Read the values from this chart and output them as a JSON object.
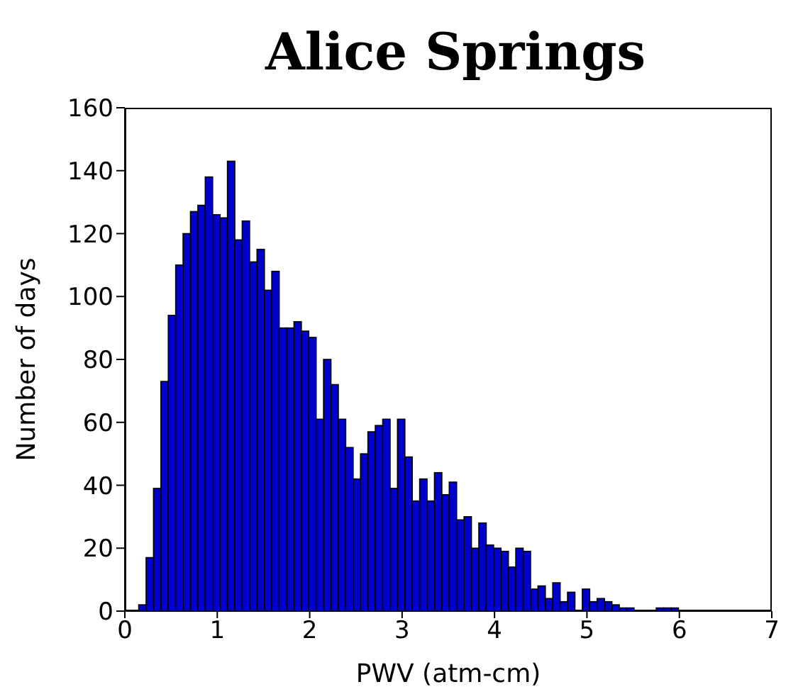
{
  "chart_data": {
    "type": "histogram",
    "title": "Alice Springs",
    "xlabel": "PWV (atm-cm)",
    "ylabel": "Number of days",
    "color": "#0000cc",
    "bins": [
      0.15,
      0.23,
      0.31,
      0.39,
      0.47,
      0.55,
      0.63,
      0.71,
      0.79,
      0.87,
      0.95,
      1.03,
      1.11,
      1.19,
      1.27,
      1.35,
      1.43,
      1.51,
      1.59,
      1.67,
      1.75,
      1.83,
      1.91,
      1.99,
      2.07,
      2.15,
      2.23,
      2.31,
      2.39,
      2.47,
      2.55,
      2.63,
      2.71,
      2.79,
      2.87,
      2.95,
      3.03,
      3.11,
      3.19,
      3.27,
      3.35,
      3.43,
      3.51,
      3.59,
      3.67,
      3.75,
      3.83,
      3.91,
      3.99,
      4.07,
      4.15,
      4.23,
      4.31,
      4.39,
      4.47,
      4.55,
      4.63,
      4.71,
      4.79,
      4.87,
      4.95,
      5.03,
      5.11,
      5.19,
      5.27,
      5.35,
      5.43,
      5.51,
      5.59,
      5.67,
      5.75,
      5.83,
      5.91,
      5.99
    ],
    "values": [
      2,
      17,
      39,
      73,
      94,
      110,
      120,
      127,
      129,
      138,
      126,
      125,
      143,
      118,
      124,
      111,
      115,
      102,
      108,
      90,
      90,
      92,
      89,
      87,
      61,
      80,
      72,
      61,
      52,
      42,
      50,
      57,
      59,
      61,
      39,
      61,
      49,
      35,
      42,
      35,
      44,
      37,
      41,
      29,
      30,
      20,
      28,
      21,
      20,
      19,
      14,
      20,
      19,
      7,
      8,
      4,
      9,
      3,
      6,
      0,
      7,
      3,
      4,
      3,
      2,
      1,
      1,
      0,
      0,
      0,
      1,
      1,
      1
    ],
    "xlim": [
      0,
      7
    ],
    "xticks": [
      0,
      1,
      2,
      3,
      4,
      5,
      6,
      7
    ],
    "ylim": [
      0,
      160
    ],
    "yticks": [
      0,
      20,
      40,
      60,
      80,
      100,
      120,
      140,
      160
    ],
    "grid": false
  }
}
